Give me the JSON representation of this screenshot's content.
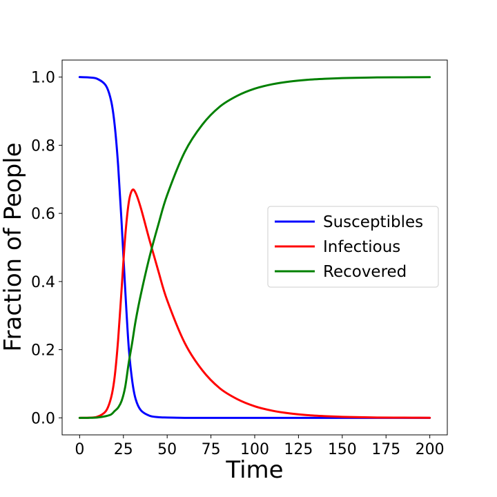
{
  "chart_data": {
    "type": "line",
    "title": "",
    "xlabel": "Time",
    "ylabel": "Fraction of People",
    "xlim": [
      -10,
      210
    ],
    "ylim": [
      -0.05,
      1.05
    ],
    "xticks": [
      0,
      25,
      50,
      75,
      100,
      125,
      150,
      175,
      200
    ],
    "xtick_labels": [
      "0",
      "25",
      "50",
      "75",
      "100",
      "125",
      "150",
      "175",
      "200"
    ],
    "yticks": [
      0.0,
      0.2,
      0.4,
      0.6,
      0.8,
      1.0
    ],
    "ytick_labels": [
      "0.0",
      "0.2",
      "0.4",
      "0.6",
      "0.8",
      "1.0"
    ],
    "grid": false,
    "legend_position": "center-right",
    "x": [
      0,
      5,
      10,
      15,
      18,
      20,
      22,
      24,
      26,
      28,
      30,
      32,
      35,
      40,
      45,
      50,
      60,
      70,
      80,
      90,
      100,
      110,
      120,
      130,
      140,
      150,
      160,
      170,
      180,
      190,
      200
    ],
    "series": [
      {
        "name": "Susceptibles",
        "color": "#0000ff",
        "values": [
          1.0,
          0.999,
          0.995,
          0.975,
          0.93,
          0.86,
          0.74,
          0.57,
          0.38,
          0.21,
          0.11,
          0.055,
          0.022,
          0.006,
          0.002,
          0.001,
          0.0,
          0.0,
          0.0,
          0.0,
          0.0,
          0.0,
          0.0,
          0.0,
          0.0,
          0.0,
          0.0,
          0.0,
          0.0,
          0.0,
          0.0
        ]
      },
      {
        "name": "Infectious",
        "color": "#ff0000",
        "values": [
          0.0,
          0.0005,
          0.003,
          0.02,
          0.06,
          0.12,
          0.23,
          0.38,
          0.53,
          0.63,
          0.668,
          0.66,
          0.615,
          0.52,
          0.43,
          0.345,
          0.22,
          0.14,
          0.087,
          0.055,
          0.034,
          0.021,
          0.013,
          0.008,
          0.005,
          0.003,
          0.002,
          0.001,
          0.0007,
          0.0004,
          0.0002
        ]
      },
      {
        "name": "Recovered",
        "color": "#008000",
        "values": [
          0.0,
          0.0,
          0.001,
          0.005,
          0.01,
          0.02,
          0.03,
          0.05,
          0.09,
          0.16,
          0.22,
          0.285,
          0.363,
          0.474,
          0.568,
          0.654,
          0.78,
          0.86,
          0.913,
          0.945,
          0.966,
          0.979,
          0.987,
          0.992,
          0.995,
          0.997,
          0.998,
          0.999,
          0.9993,
          0.9996,
          0.9998
        ]
      }
    ]
  }
}
